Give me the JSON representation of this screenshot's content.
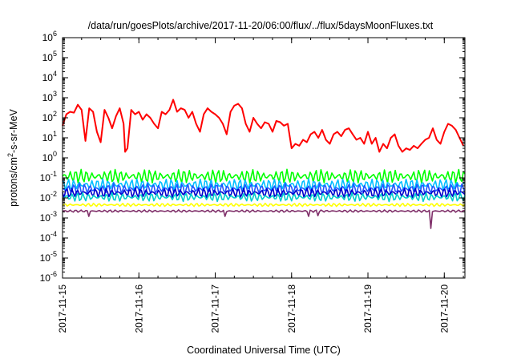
{
  "chart_data": {
    "type": "line",
    "title": "/data/run/goesPlots/archive/2017-11-20/06:00/flux/../flux/5daysMoonFluxes.txt",
    "xlabel": "Coordinated Universal Time (UTC)",
    "ylabel": {
      "base": "protons/cm",
      "sup": "2",
      "rest": "-s-sr-MeV"
    },
    "yscale": "log",
    "ylim": [
      1e-06,
      1000000.0
    ],
    "xlim": [
      0,
      5.27
    ],
    "grid": false,
    "legend": "none",
    "y_ticks": [
      {
        "value": 1000000.0,
        "base": "10",
        "exp": "6"
      },
      {
        "value": 100000.0,
        "base": "10",
        "exp": "5"
      },
      {
        "value": 10000.0,
        "base": "10",
        "exp": "4"
      },
      {
        "value": 1000.0,
        "base": "10",
        "exp": "3"
      },
      {
        "value": 100.0,
        "base": "10",
        "exp": "2"
      },
      {
        "value": 10.0,
        "base": "10",
        "exp": "1"
      },
      {
        "value": 1,
        "base": "10",
        "exp": "0"
      },
      {
        "value": 0.1,
        "base": "10",
        "exp": "-1"
      },
      {
        "value": 0.01,
        "base": "10",
        "exp": "-2"
      },
      {
        "value": 0.001,
        "base": "10",
        "exp": "-3"
      },
      {
        "value": 0.0001,
        "base": "10",
        "exp": "-4"
      },
      {
        "value": 1e-05,
        "base": "10",
        "exp": "-5"
      },
      {
        "value": 1e-06,
        "base": "10",
        "exp": "-6"
      }
    ],
    "x_ticks": [
      {
        "value": 0,
        "label": "2017-11-15"
      },
      {
        "value": 1,
        "label": "2017-11-16"
      },
      {
        "value": 2,
        "label": "2017-11-17"
      },
      {
        "value": 3,
        "label": "2017-11-18"
      },
      {
        "value": 4,
        "label": "2017-11-19"
      },
      {
        "value": 5,
        "label": "2017-11-20"
      }
    ],
    "series": [
      {
        "color": "#ff0000",
        "x": [
          0,
          0.05,
          0.1,
          0.15,
          0.2,
          0.25,
          0.3,
          0.35,
          0.4,
          0.45,
          0.5,
          0.55,
          0.6,
          0.65,
          0.7,
          0.75,
          0.8,
          0.82,
          0.85,
          0.9,
          0.95,
          1.0,
          1.05,
          1.1,
          1.15,
          1.2,
          1.25,
          1.3,
          1.35,
          1.4,
          1.45,
          1.5,
          1.55,
          1.6,
          1.65,
          1.7,
          1.75,
          1.8,
          1.85,
          1.9,
          1.95,
          2.0,
          2.05,
          2.1,
          2.15,
          2.2,
          2.25,
          2.3,
          2.35,
          2.4,
          2.45,
          2.5,
          2.55,
          2.6,
          2.65,
          2.7,
          2.75,
          2.8,
          2.85,
          2.9,
          2.95,
          3.0,
          3.05,
          3.1,
          3.15,
          3.2,
          3.25,
          3.3,
          3.35,
          3.4,
          3.45,
          3.5,
          3.55,
          3.6,
          3.65,
          3.7,
          3.75,
          3.8,
          3.85,
          3.9,
          3.95,
          4.0,
          4.05,
          4.1,
          4.15,
          4.2,
          4.25,
          4.3,
          4.35,
          4.4,
          4.45,
          4.5,
          4.55,
          4.6,
          4.65,
          4.7,
          4.75,
          4.8,
          4.85,
          4.9,
          4.95,
          5.0,
          5.05,
          5.1,
          5.15,
          5.2,
          5.25
        ],
        "values": [
          40,
          150,
          200,
          180,
          450,
          250,
          7,
          300,
          200,
          20,
          6,
          250,
          100,
          30,
          120,
          300,
          50,
          2,
          3,
          250,
          150,
          200,
          80,
          150,
          100,
          50,
          30,
          200,
          150,
          250,
          800,
          200,
          300,
          250,
          100,
          200,
          50,
          20,
          150,
          300,
          200,
          150,
          100,
          50,
          15,
          200,
          400,
          500,
          300,
          50,
          20,
          100,
          50,
          30,
          60,
          50,
          20,
          70,
          60,
          40,
          50,
          3,
          5,
          4,
          8,
          6,
          15,
          20,
          10,
          25,
          8,
          5,
          15,
          20,
          12,
          25,
          30,
          15,
          8,
          10,
          5,
          20,
          5,
          10,
          2,
          5,
          3,
          10,
          15,
          4,
          2,
          3,
          2.5,
          4,
          3,
          5,
          8,
          10,
          30,
          8,
          5,
          20,
          50,
          40,
          25,
          10,
          4
        ]
      },
      {
        "color": "#00ff00",
        "base": 0.12,
        "spread": 0.35,
        "phase": 0.0,
        "x": [
          0,
          0.5,
          1,
          1.5,
          2,
          2.5,
          3,
          3.5,
          4,
          4.5,
          5,
          5.27
        ],
        "values": [
          0.12,
          0.12,
          0.12,
          0.12,
          0.12,
          0.12,
          0.12,
          0.12,
          0.12,
          0.12,
          0.12,
          0.12
        ]
      },
      {
        "color": "#00bfff",
        "base": 0.045,
        "spread": 0.3,
        "phase": 1.3,
        "x": [
          0,
          0.5,
          1,
          1.5,
          2,
          2.5,
          3,
          3.5,
          4,
          4.5,
          5,
          5.27
        ],
        "values": [
          0.045,
          0.045,
          0.045,
          0.045,
          0.045,
          0.045,
          0.045,
          0.045,
          0.045,
          0.045,
          0.045,
          0.045
        ]
      },
      {
        "color": "#2255ff",
        "base": 0.028,
        "spread": 0.28,
        "phase": 2.1,
        "x": [
          0,
          0.5,
          1,
          1.5,
          2,
          2.5,
          3,
          3.5,
          4,
          4.5,
          5,
          5.27
        ],
        "values": [
          0.028,
          0.028,
          0.028,
          0.028,
          0.028,
          0.028,
          0.028,
          0.028,
          0.028,
          0.028,
          0.028,
          0.028
        ]
      },
      {
        "color": "#0000cc",
        "base": 0.018,
        "spread": 0.25,
        "phase": 3.4,
        "x": [
          0,
          0.5,
          1,
          1.5,
          2,
          2.5,
          3,
          3.5,
          4,
          4.5,
          5,
          5.27
        ],
        "values": [
          0.018,
          0.018,
          0.018,
          0.018,
          0.018,
          0.018,
          0.018,
          0.018,
          0.018,
          0.018,
          0.018,
          0.018
        ]
      },
      {
        "color": "#00cccc",
        "base": 0.011,
        "spread": 0.22,
        "phase": 4.2,
        "x": [
          0,
          0.5,
          1,
          1.5,
          2,
          2.5,
          3,
          3.5,
          4,
          4.5,
          5,
          5.27
        ],
        "values": [
          0.011,
          0.011,
          0.011,
          0.011,
          0.011,
          0.011,
          0.011,
          0.011,
          0.011,
          0.011,
          0.011,
          0.011
        ]
      },
      {
        "color": "#ffff00",
        "base": 0.0045,
        "spread": 0.08,
        "phase": 5.0,
        "x": [
          0,
          0.5,
          1,
          1.5,
          2,
          2.5,
          3,
          3.5,
          4,
          4.5,
          5,
          5.27
        ],
        "values": [
          0.0045,
          0.0045,
          0.0045,
          0.0045,
          0.0045,
          0.0045,
          0.0045,
          0.0045,
          0.0045,
          0.0045,
          0.0045,
          0.0045
        ]
      },
      {
        "color": "#80306a",
        "base": 0.0022,
        "spread": 0.06,
        "phase": 6.1,
        "dips": [
          {
            "x": 0.35,
            "v": 0.0012
          },
          {
            "x": 2.12,
            "v": 0.0012
          },
          {
            "x": 3.22,
            "v": 0.0012
          },
          {
            "x": 3.35,
            "v": 0.0013
          },
          {
            "x": 4.82,
            "v": 0.0003
          }
        ],
        "x": [
          0,
          0.5,
          1,
          1.5,
          2,
          2.5,
          3,
          3.5,
          4,
          4.5,
          5,
          5.27
        ],
        "values": [
          0.0022,
          0.0022,
          0.0022,
          0.0022,
          0.0022,
          0.0022,
          0.0022,
          0.0022,
          0.0022,
          0.0022,
          0.0022,
          0.0022
        ]
      }
    ]
  }
}
